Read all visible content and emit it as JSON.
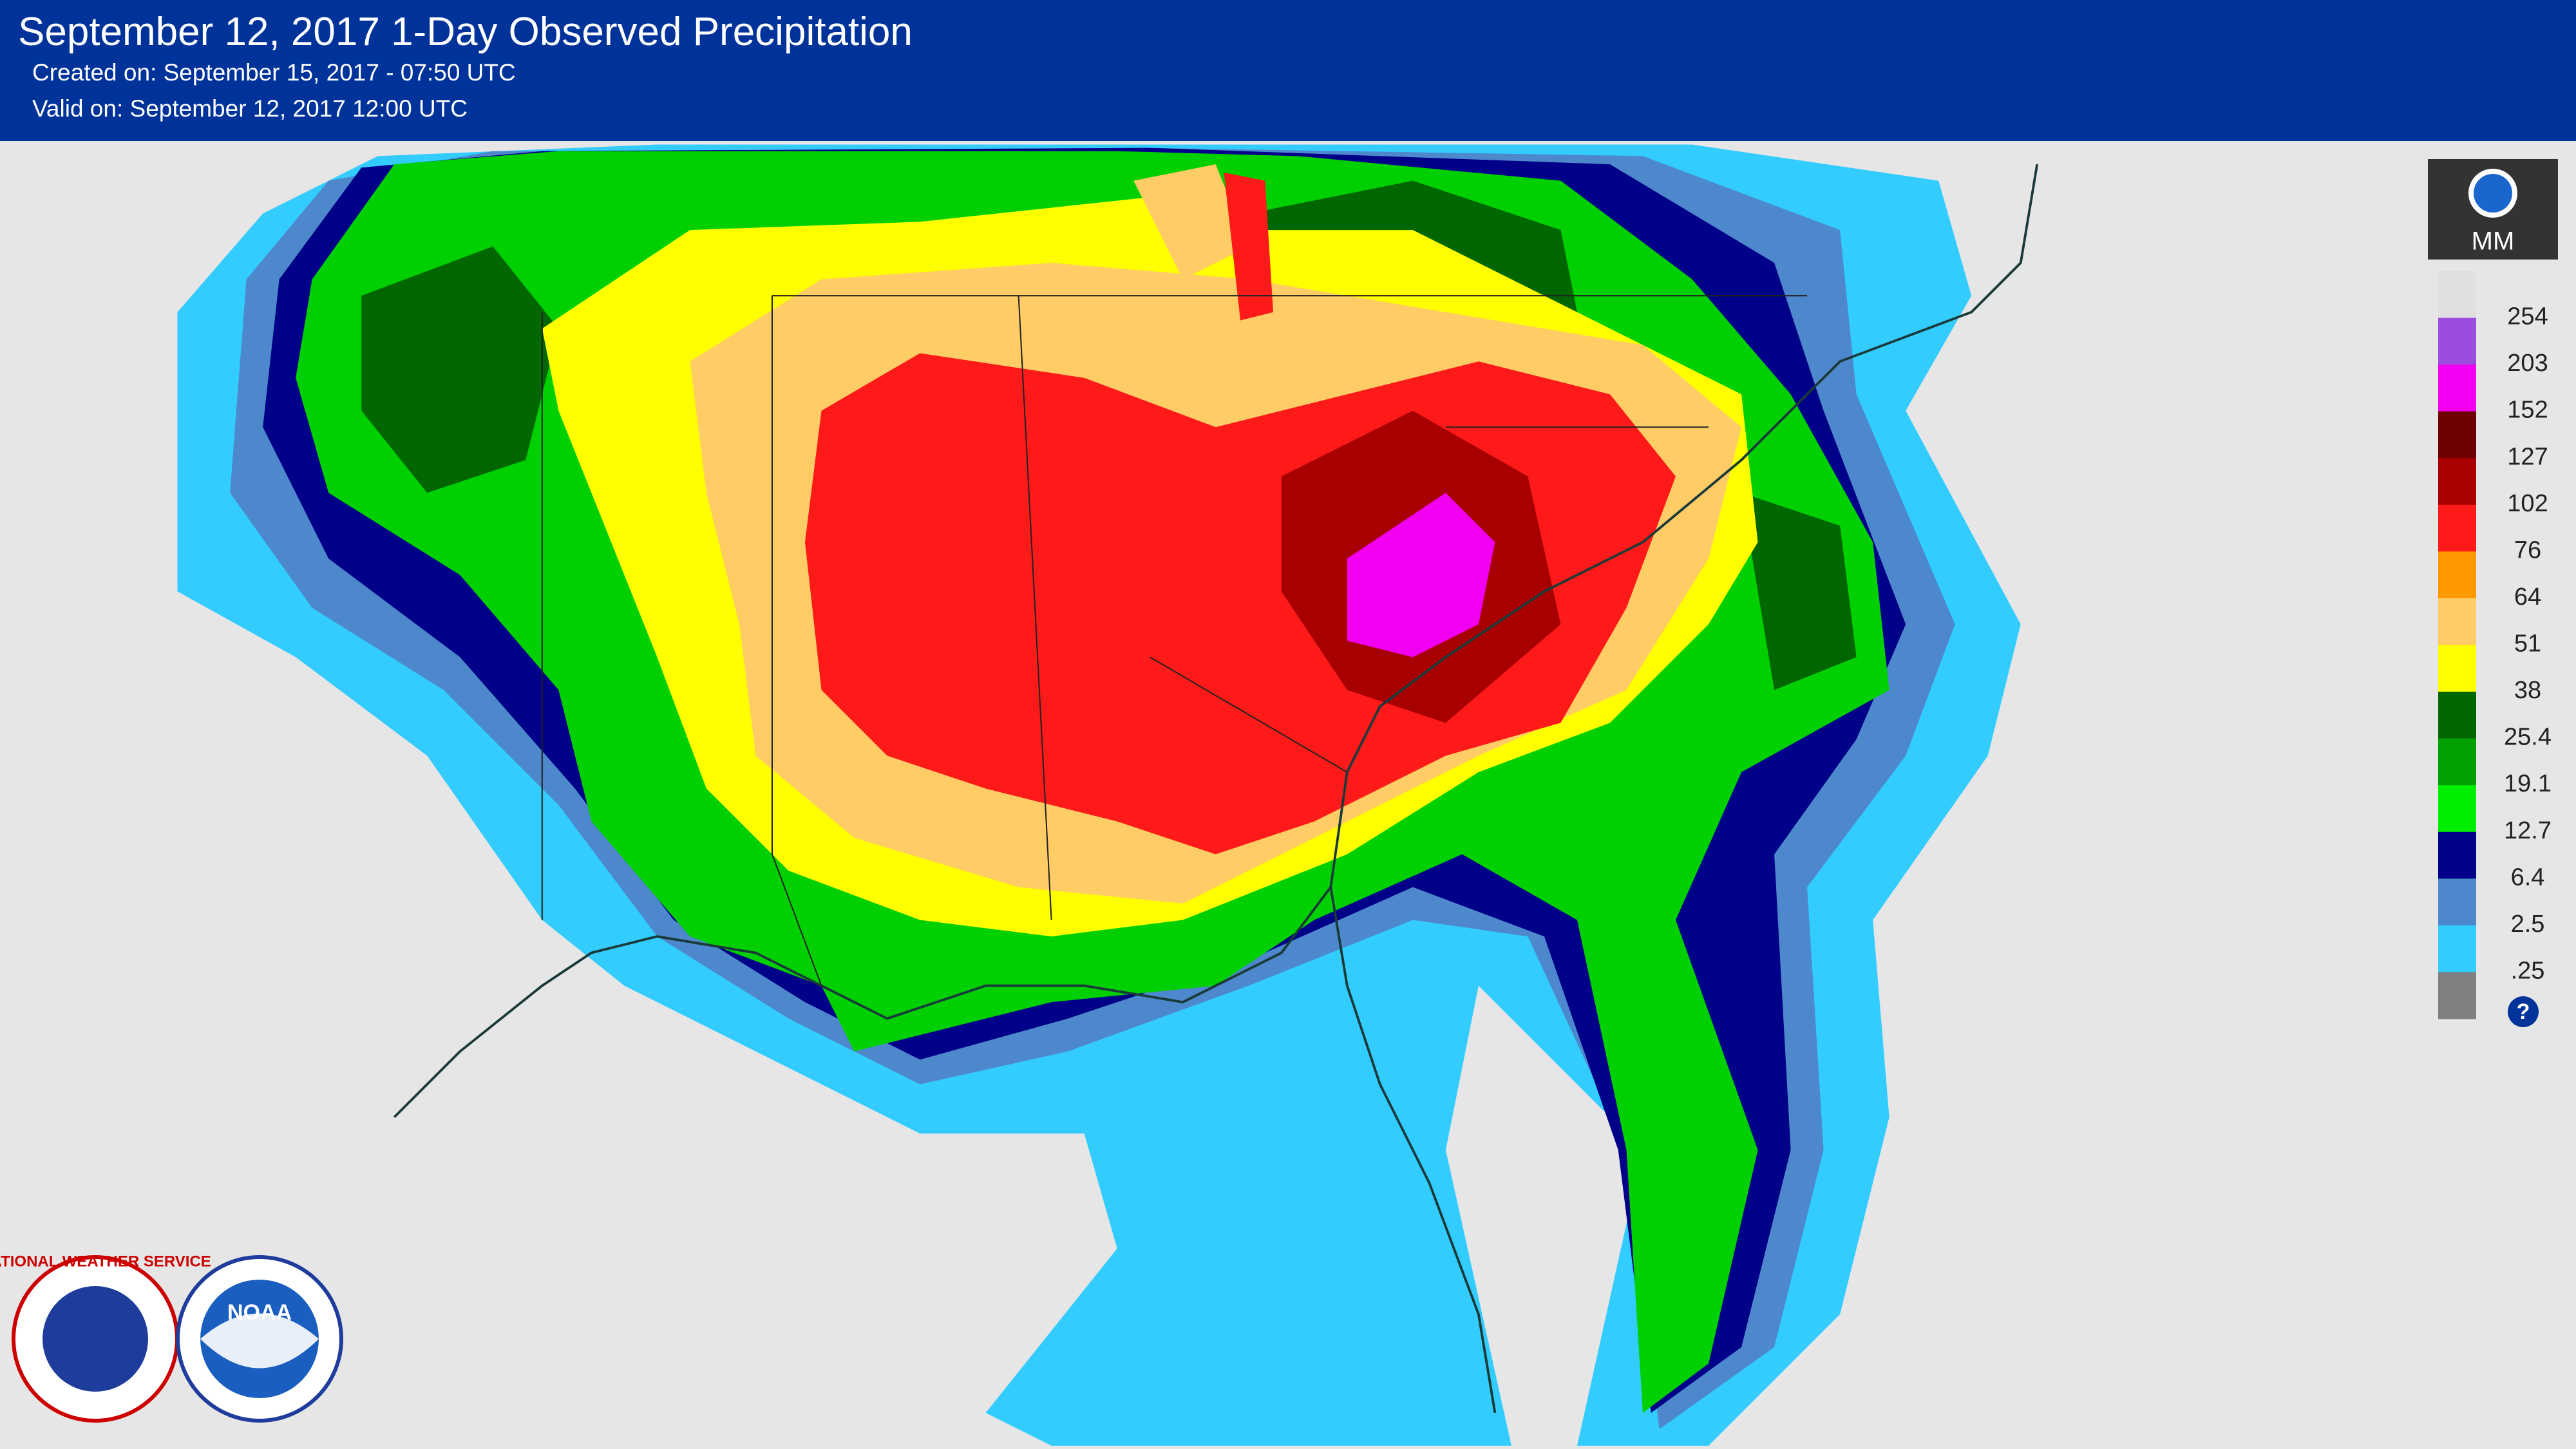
{
  "header": {
    "title": "September 12, 2017 1-Day Observed Precipitation",
    "created": "Created on: September 15, 2017 - 07:50 UTC",
    "valid": "Valid on: September 12, 2017 12:00 UTC"
  },
  "legend": {
    "unit": "MM",
    "labels": [
      "254",
      "203",
      "152",
      "127",
      "102",
      "76",
      "64",
      "51",
      "38",
      "25.4",
      "19.1",
      "12.7",
      "6.4",
      "2.5",
      ".25"
    ],
    "colors": [
      "#e0e0e0",
      "#9b4de0",
      "#f200f2",
      "#6e0000",
      "#a80000",
      "#ff1a1a",
      "#ff9900",
      "#ffcc66",
      "#ffff00",
      "#006600",
      "#00a000",
      "#00ee00",
      "#000088",
      "#4d88cc",
      "#33ccff",
      "#808080"
    ],
    "help": "?"
  },
  "logos": {
    "nws": "NATIONAL WEATHER SERVICE",
    "noaa": "NOAA"
  }
}
